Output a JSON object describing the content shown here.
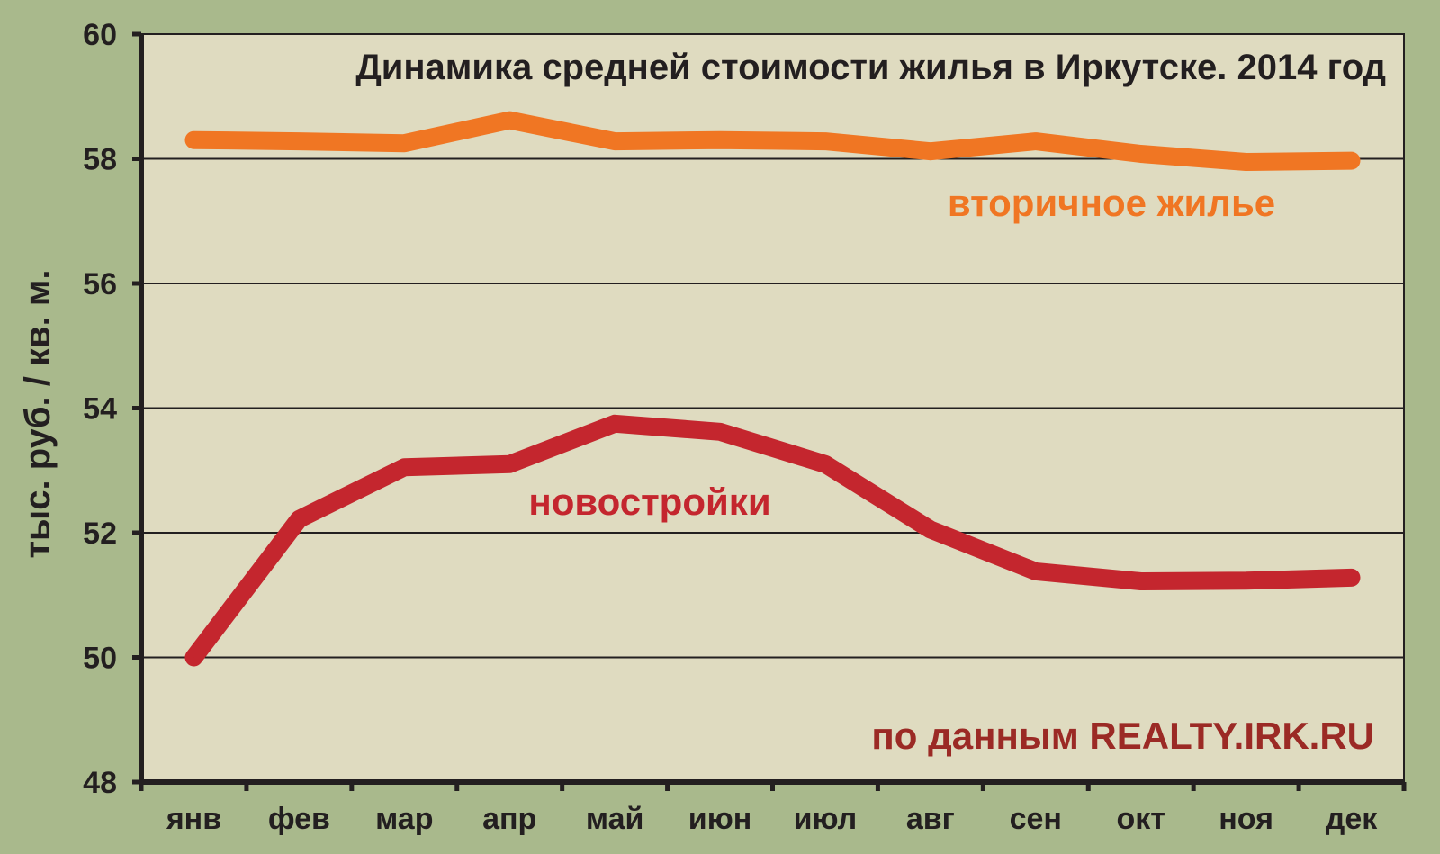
{
  "chart_data": {
    "type": "line",
    "title": "Динамика средней стоимости жилья в Иркутске. 2014 год",
    "xlabel": "",
    "ylabel": "тыс. руб. / кв. м.",
    "categories": [
      "янв",
      "фев",
      "мар",
      "апр",
      "май",
      "июн",
      "июл",
      "авг",
      "сен",
      "окт",
      "ноя",
      "дек"
    ],
    "ylim": [
      48,
      60
    ],
    "yticks": [
      "48",
      "50",
      "52",
      "54",
      "56",
      "58",
      "60"
    ],
    "grid": true,
    "series": [
      {
        "name": "вторичное жилье",
        "color": "#f07623",
        "values": [
          58.3,
          58.28,
          58.25,
          58.62,
          58.28,
          58.3,
          58.28,
          58.12,
          58.28,
          58.08,
          57.95,
          57.97
        ]
      },
      {
        "name": "новостройки",
        "color": "#c4262e",
        "values": [
          50.0,
          52.22,
          53.05,
          53.1,
          53.75,
          53.62,
          53.1,
          52.05,
          51.38,
          51.22,
          51.23,
          51.28
        ]
      }
    ],
    "source": "по данным REALTY.IRK.RU",
    "source_color": "#9b2a25",
    "plot_background": "#dfdbc0",
    "page_background": "#a9b98c"
  }
}
